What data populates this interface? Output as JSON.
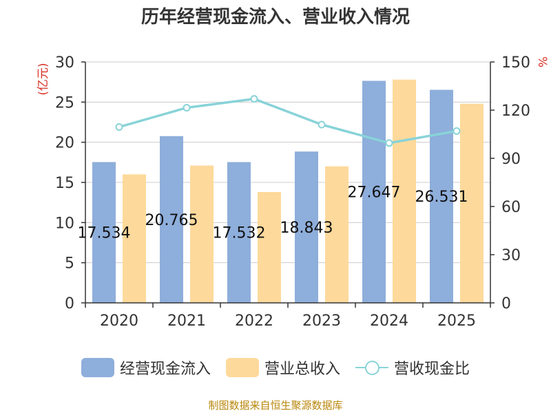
{
  "title": "历年经营现金流入、营业收入情况",
  "footer": "制图数据来自恒生聚源数据库",
  "chart_data": {
    "type": "bar",
    "categories": [
      "2020",
      "2021",
      "2022",
      "2023",
      "2024",
      "2025"
    ],
    "series": [
      {
        "name": "经营现金流入",
        "type": "bar",
        "axis": "left",
        "color": "#8eaedb",
        "values": [
          17.534,
          20.765,
          17.532,
          18.843,
          27.647,
          26.531
        ],
        "labels": [
          "17.534",
          "20.765",
          "17.532",
          "18.843",
          "27.647",
          "26.531"
        ]
      },
      {
        "name": "营业总收入",
        "type": "bar",
        "axis": "left",
        "color": "#fdd99b",
        "values": [
          16.0,
          17.1,
          13.8,
          17.0,
          27.8,
          24.8
        ]
      },
      {
        "name": "营收现金比",
        "type": "line",
        "axis": "right",
        "color": "#88d3d8",
        "values": [
          109.5,
          121.5,
          127.0,
          111.0,
          99.5,
          107.0
        ]
      }
    ],
    "yaxis_left": {
      "label": "(亿元)",
      "min": 0,
      "max": 30,
      "ticks": [
        0,
        5,
        10,
        15,
        20,
        25,
        30
      ],
      "label_color": "#d93025"
    },
    "yaxis_right": {
      "label": "%",
      "min": 0,
      "max": 150,
      "ticks": [
        0,
        30,
        60,
        90,
        120,
        150
      ],
      "label_color": "#d93025"
    },
    "grid": true,
    "legend_position": "bottom"
  }
}
